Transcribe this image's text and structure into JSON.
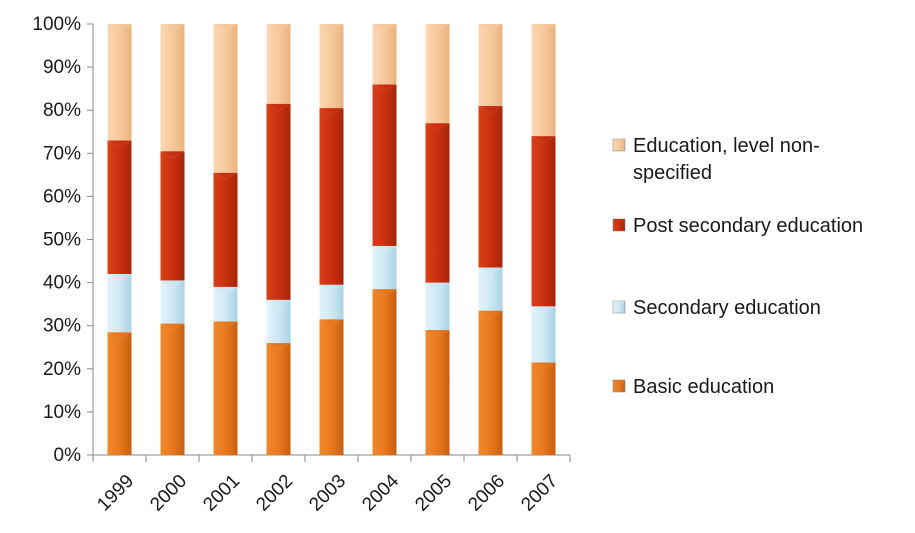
{
  "chart_data": {
    "type": "bar",
    "stacked": true,
    "percent_stacked": true,
    "categories": [
      "1999",
      "2000",
      "2001",
      "2002",
      "2003",
      "2004",
      "2005",
      "2006",
      "2007"
    ],
    "series": [
      {
        "name": "Basic education",
        "color": "#e8781e",
        "values": [
          28.5,
          30.5,
          31,
          26,
          31.5,
          38.5,
          29,
          33.5,
          21.5
        ]
      },
      {
        "name": "Secondary education",
        "color": "#cfe8f3",
        "values": [
          13.5,
          10,
          8,
          10,
          8,
          10,
          11,
          10,
          13
        ]
      },
      {
        "name": "Post secondary education",
        "color": "#c9300f",
        "values": [
          31,
          30,
          26.5,
          45.5,
          41,
          37.5,
          37,
          37.5,
          39.5
        ]
      },
      {
        "name": "Education, level non-specified",
        "color": "#f6c99b",
        "values": [
          27,
          29.5,
          34.5,
          18.5,
          19.5,
          14,
          23,
          19,
          26
        ]
      }
    ],
    "y_ticks": [
      "0%",
      "10%",
      "20%",
      "30%",
      "40%",
      "50%",
      "60%",
      "70%",
      "80%",
      "90%",
      "100%"
    ],
    "ylim": [
      0,
      100
    ],
    "grid": false,
    "legend_position": "right",
    "legend": [
      {
        "lines": [
          "Education, level non-",
          "specified"
        ],
        "series": 3
      },
      {
        "lines": [
          "Post secondary education"
        ],
        "series": 2
      },
      {
        "lines": [
          "Secondary education"
        ],
        "series": 1
      },
      {
        "lines": [
          "Basic education"
        ],
        "series": 0
      }
    ]
  }
}
